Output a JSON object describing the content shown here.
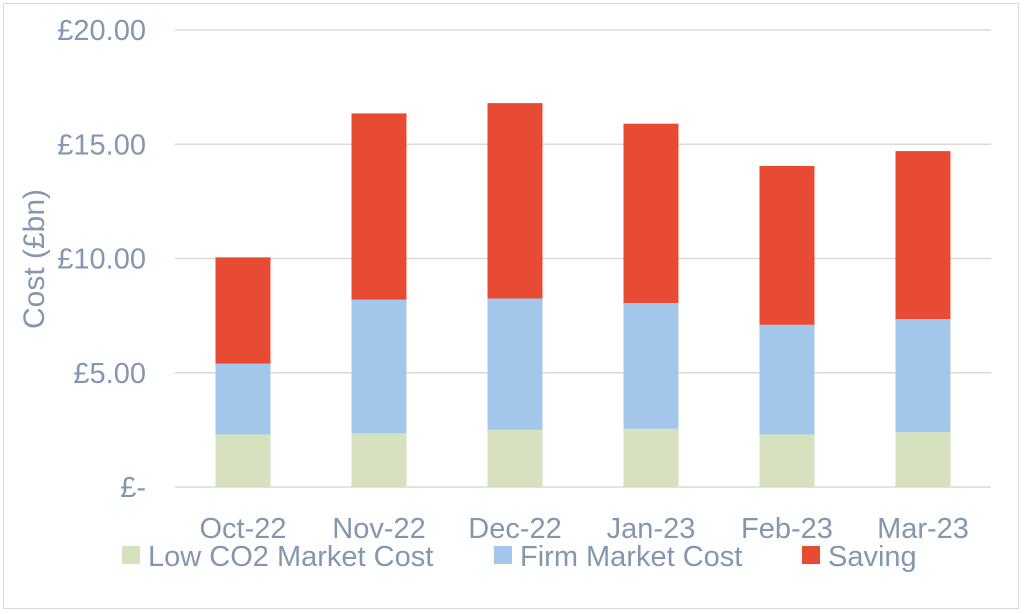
{
  "chart_data": {
    "type": "bar",
    "stacked": true,
    "categories": [
      "Oct-22",
      "Nov-22",
      "Dec-22",
      "Jan-23",
      "Feb-23",
      "Mar-23"
    ],
    "series": [
      {
        "name": "Low CO2 Market Cost",
        "color": "#d6e2bf",
        "values": [
          2.3,
          2.35,
          2.5,
          2.55,
          2.3,
          2.4
        ]
      },
      {
        "name": "Firm Market Cost",
        "color": "#a3c7ea",
        "values": [
          3.1,
          5.85,
          5.75,
          5.5,
          4.8,
          4.95
        ]
      },
      {
        "name": "Saving",
        "color": "#e84b33",
        "values": [
          4.65,
          8.15,
          8.55,
          7.85,
          6.95,
          7.35
        ]
      }
    ],
    "yticks": [
      "£-",
      "£5.00",
      "£10.00",
      "£15.00",
      "£20.00"
    ],
    "ytick_values": [
      0,
      5,
      10,
      15,
      20
    ],
    "ylim": [
      0,
      20
    ],
    "ylabel": "Cost (£bn)",
    "xlabel": "",
    "grid": true,
    "legend_position": "bottom"
  }
}
